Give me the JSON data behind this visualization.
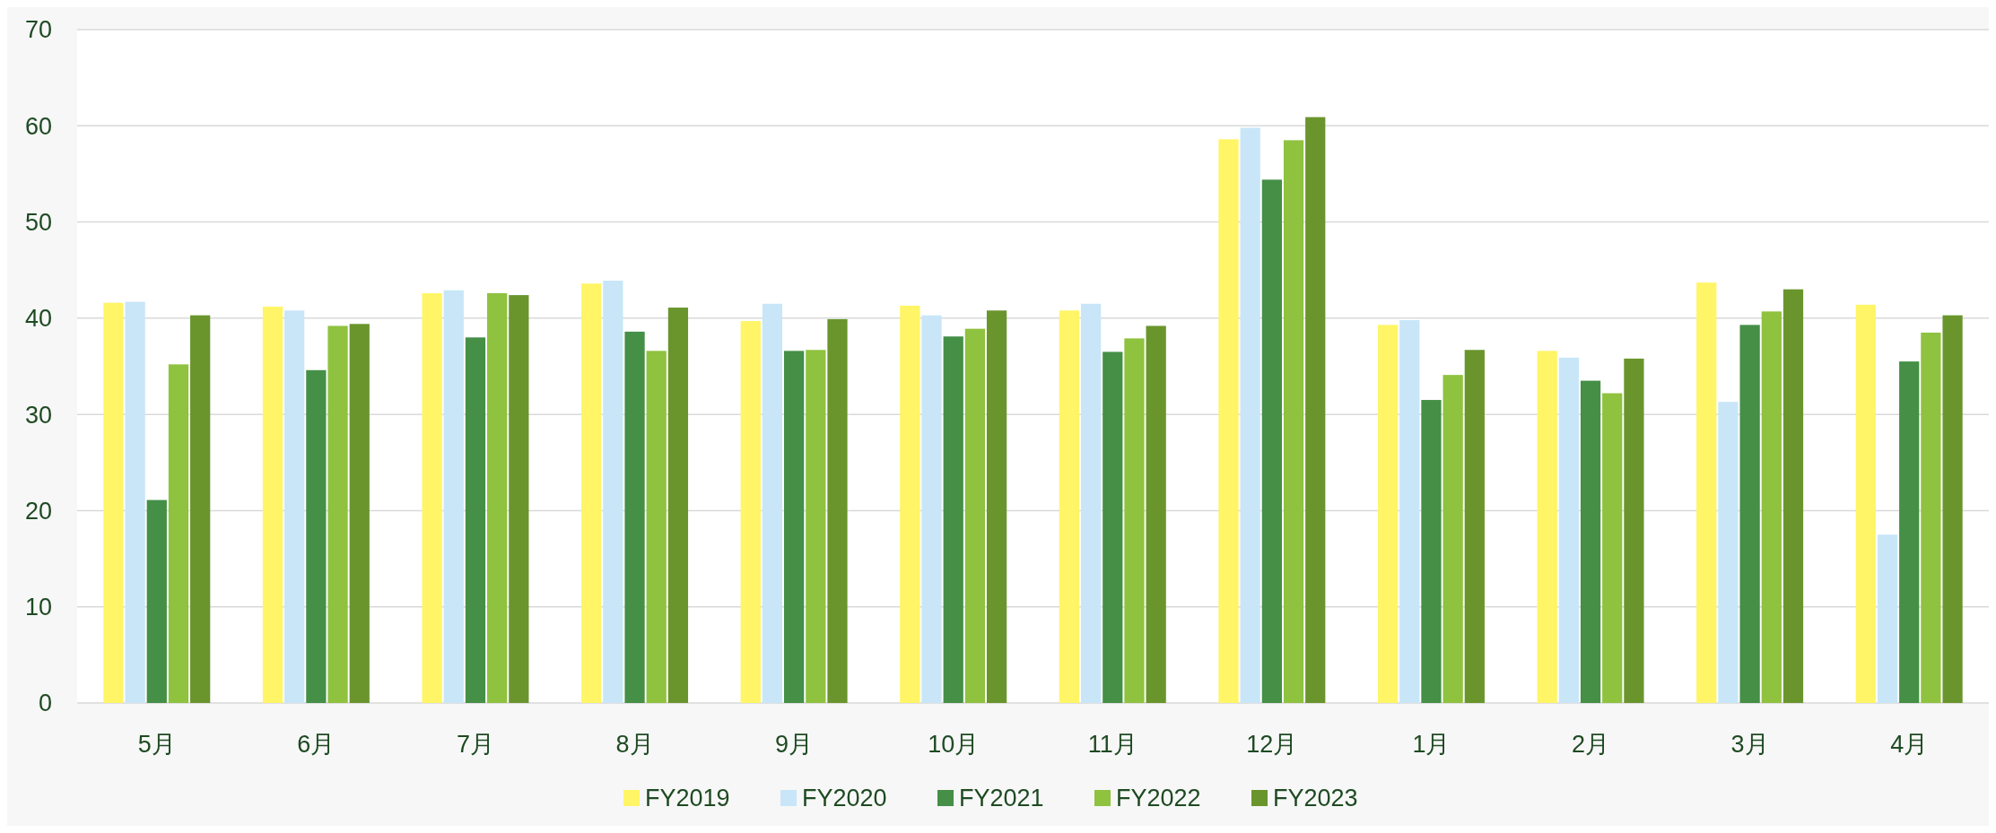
{
  "chart_data": {
    "type": "bar",
    "categories": [
      "5月",
      "6月",
      "7月",
      "8月",
      "9月",
      "10月",
      "11月",
      "12月",
      "1月",
      "2月",
      "3月",
      "4月"
    ],
    "series": [
      {
        "name": "FY2019",
        "color": "#fff566",
        "values": [
          41.6,
          41.2,
          42.6,
          43.6,
          39.7,
          41.3,
          40.8,
          58.6,
          39.3,
          36.6,
          43.7,
          41.4
        ]
      },
      {
        "name": "FY2020",
        "color": "#c8e6f8",
        "values": [
          41.7,
          40.8,
          42.9,
          43.9,
          41.5,
          40.3,
          41.5,
          59.8,
          39.8,
          35.9,
          31.3,
          17.5
        ]
      },
      {
        "name": "FY2021",
        "color": "#458f47",
        "values": [
          21.1,
          34.6,
          38.0,
          38.6,
          36.6,
          38.1,
          36.5,
          54.4,
          31.5,
          33.5,
          39.3,
          35.5
        ]
      },
      {
        "name": "FY2022",
        "color": "#8fc23f",
        "values": [
          35.2,
          39.2,
          42.6,
          36.6,
          36.7,
          38.9,
          37.9,
          58.5,
          34.1,
          32.2,
          40.7,
          38.5
        ]
      },
      {
        "name": "FY2023",
        "color": "#6a952d",
        "values": [
          40.3,
          39.4,
          42.4,
          41.1,
          39.9,
          40.8,
          39.2,
          60.9,
          36.7,
          35.8,
          43.0,
          40.3
        ]
      }
    ],
    "ylim": [
      0,
      70
    ],
    "yticks": [
      0,
      10,
      20,
      30,
      40,
      50,
      60,
      70
    ],
    "grid": "y",
    "legend": "bottom"
  }
}
